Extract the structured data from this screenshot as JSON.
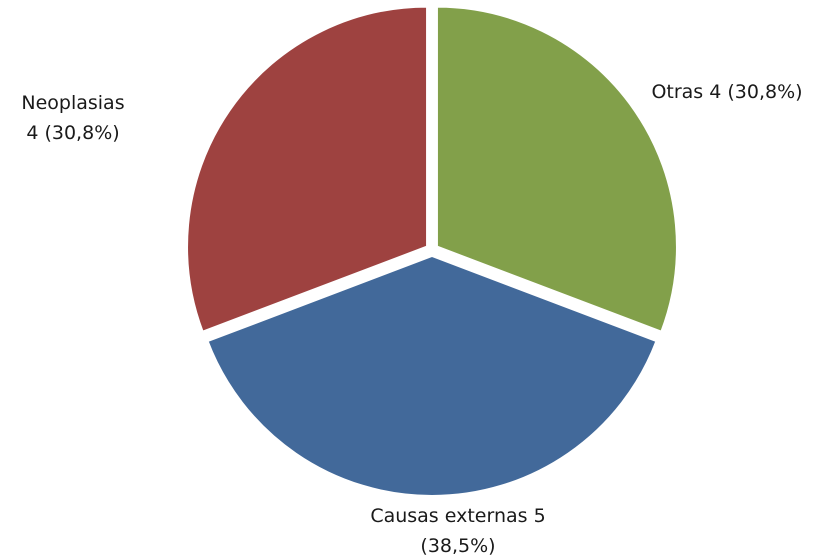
{
  "chart_data": {
    "type": "pie",
    "title": "",
    "slices": [
      {
        "label": "Otras",
        "value": 4,
        "percent": "30,8%",
        "label_line1": "Otras 4 (30,8%)",
        "label_line2": "",
        "color": "#82a04a"
      },
      {
        "label": "Causas externas",
        "value": 5,
        "percent": "38,5%",
        "label_line1": "Causas externas 5",
        "label_line2": "(38,5%)",
        "color": "#42699a"
      },
      {
        "label": "Neoplasias",
        "value": 4,
        "percent": "30,8%",
        "label_line1": "Neoplasias",
        "label_line2": "4 (30,8%)",
        "color": "#9e4240"
      }
    ],
    "start_angle_deg": 0,
    "direction": "clockwise",
    "exploded": true,
    "legend": "none"
  }
}
